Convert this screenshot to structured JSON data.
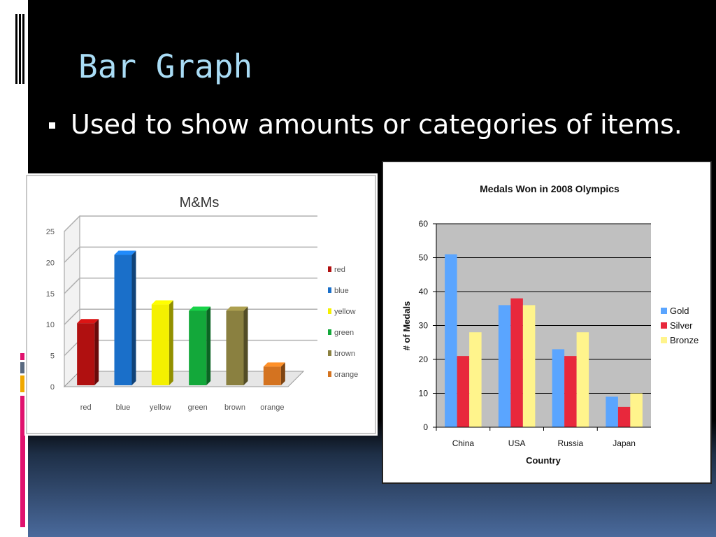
{
  "slide": {
    "title": "Bar Graph",
    "bullet": "Used to show amounts or categories of items.",
    "colors": {
      "title": "#a9dcf5",
      "accent_pink": "#e0126e",
      "accent_orange": "#f0a800",
      "accent_gray": "#5a6a80"
    }
  },
  "chart_data": [
    {
      "type": "bar",
      "title": "M&Ms",
      "categories": [
        "red",
        "blue",
        "yellow",
        "green",
        "brown",
        "orange"
      ],
      "values": [
        10,
        21,
        13,
        12,
        12,
        3
      ],
      "colors": [
        "#b01010",
        "#1a6fc9",
        "#f4f000",
        "#13a83a",
        "#8a8040",
        "#d47320"
      ],
      "ylim": [
        0,
        25
      ],
      "yticks": [
        "0",
        "5",
        "10",
        "15",
        "20",
        "25"
      ],
      "legend_position": "right",
      "grid": true,
      "style": "3d"
    },
    {
      "type": "bar",
      "title": "Medals Won in 2008 Olympics",
      "xlabel": "Country",
      "ylabel": "# of Medals",
      "categories": [
        "China",
        "USA",
        "Russia",
        "Japan"
      ],
      "series": [
        {
          "name": "Gold",
          "values": [
            51,
            36,
            23,
            9
          ],
          "color": "#5aa5ff"
        },
        {
          "name": "Silver",
          "values": [
            21,
            38,
            21,
            6
          ],
          "color": "#e8283c"
        },
        {
          "name": "Bronze",
          "values": [
            28,
            36,
            28,
            10
          ],
          "color": "#fff48c"
        }
      ],
      "ylim": [
        0,
        60
      ],
      "yticks": [
        "0",
        "10",
        "20",
        "30",
        "40",
        "50",
        "60"
      ],
      "legend_position": "right",
      "grid": true
    }
  ]
}
